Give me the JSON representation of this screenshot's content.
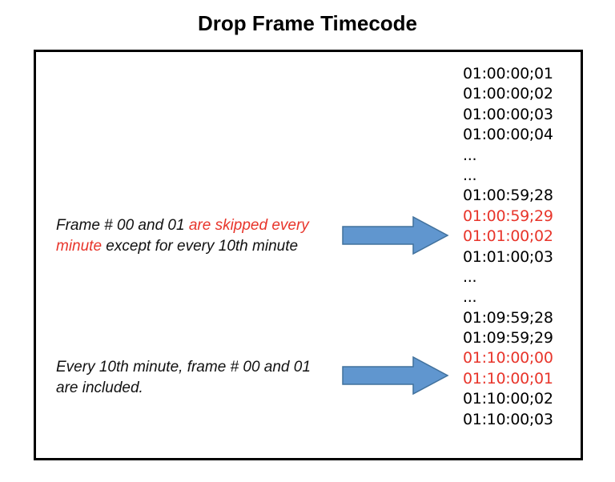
{
  "title": "Drop Frame Timecode",
  "notes": [
    {
      "parts": [
        {
          "text": "Frame # 00 and 01 ",
          "highlight": false
        },
        {
          "text": "are skipped every minute",
          "highlight": true
        },
        {
          "text": " except for every 10th minute",
          "highlight": false
        }
      ]
    },
    {
      "parts": [
        {
          "text": "Every 10th minute, frame # 00 and 01 are included.",
          "highlight": false
        }
      ]
    }
  ],
  "timecodes": [
    {
      "text": "01:00:00;01",
      "highlight": false
    },
    {
      "text": "01:00:00;02",
      "highlight": false
    },
    {
      "text": "01:00:00;03",
      "highlight": false
    },
    {
      "text": "01:00:00;04",
      "highlight": false
    },
    {
      "text": "...",
      "highlight": false
    },
    {
      "text": "...",
      "highlight": false
    },
    {
      "text": "01:00:59;28",
      "highlight": false
    },
    {
      "text": "01:00:59;29",
      "highlight": true
    },
    {
      "text": "01:01:00;02",
      "highlight": true
    },
    {
      "text": "01:01:00;03",
      "highlight": false
    },
    {
      "text": "...",
      "highlight": false
    },
    {
      "text": "...",
      "highlight": false
    },
    {
      "text": "01:09:59;28",
      "highlight": false
    },
    {
      "text": "01:09:59;29",
      "highlight": false
    },
    {
      "text": "01:10:00;00",
      "highlight": true
    },
    {
      "text": "01:10:00;01",
      "highlight": true
    },
    {
      "text": "01:10:00;02",
      "highlight": false
    },
    {
      "text": "01:10:00;03",
      "highlight": false
    }
  ],
  "colors": {
    "highlight": "#e8352b",
    "arrow_fill": "#6096cf",
    "arrow_stroke": "#41719c"
  }
}
